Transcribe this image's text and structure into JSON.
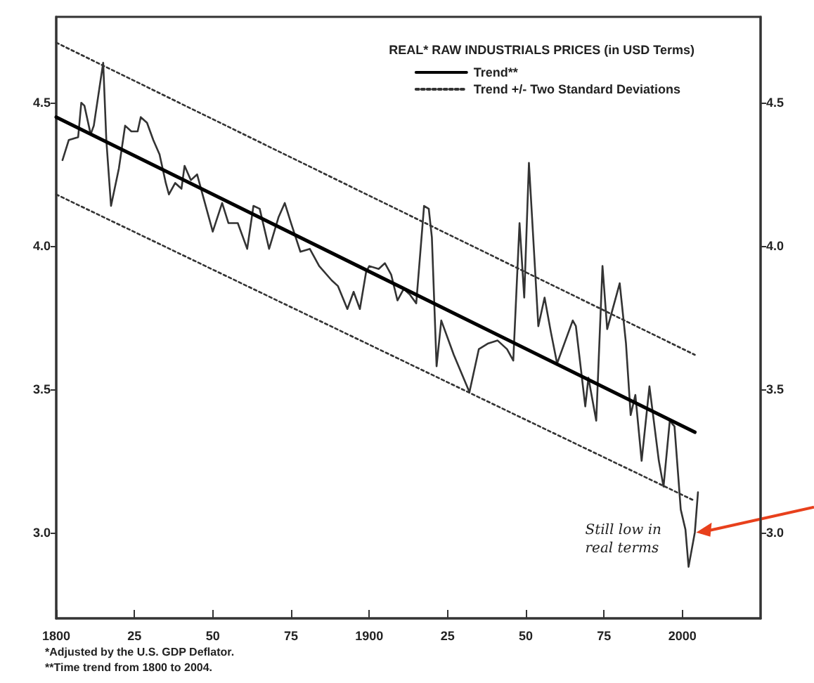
{
  "chart_data": {
    "type": "line",
    "legend_title": "REAL* RAW INDUSTRIALS PRICES (in USD Terms)",
    "xlim": [
      1800,
      2025
    ],
    "xticks": [
      1800,
      {
        "value": 1825,
        "label": "25"
      },
      {
        "value": 1850,
        "label": "50"
      },
      {
        "value": 1875,
        "label": "75"
      },
      1900,
      {
        "value": 1925,
        "label": "25"
      },
      {
        "value": 1950,
        "label": "50"
      },
      {
        "value": 1975,
        "label": "75"
      },
      2000
    ],
    "ylim": [
      2.7,
      4.8
    ],
    "yticks": [
      {
        "value": 3,
        "label": "3.0"
      },
      3.5,
      {
        "value": 4,
        "label": "4.0"
      },
      4.5
    ],
    "y2lim": [
      2.7,
      4.8
    ],
    "y2ticks": [
      {
        "value": 3,
        "label": "3.0"
      },
      3.5,
      {
        "value": 4,
        "label": "4.0"
      },
      4.5
    ],
    "grid": false,
    "legend": "top right",
    "marker": "none",
    "series": [
      {
        "color": "#333333",
        "line_style": "solid",
        "x": [
          1802,
          1804,
          1807,
          1808,
          1809,
          1811,
          1812,
          1815,
          1816,
          1817.5,
          1820,
          1822,
          1824,
          1826,
          1827,
          1829,
          1831,
          1833,
          1835,
          1836,
          1838,
          1840,
          1841,
          1843,
          1845,
          1847,
          1850,
          1853,
          1855,
          1858,
          1861,
          1863,
          1865,
          1868,
          1871,
          1873,
          1875,
          1878,
          1881,
          1884,
          1888,
          1890,
          1893,
          1895,
          1897,
          1899,
          1900,
          1903,
          1905,
          1907,
          1909,
          1911,
          1913,
          1915,
          1917.5,
          1919,
          1920,
          1921.5,
          1923,
          1927,
          1932,
          1935,
          1938,
          1941,
          1944,
          1946,
          1948,
          1949.5,
          1951,
          1954,
          1956,
          1958,
          1960,
          1965,
          1966,
          1969,
          1970,
          1972.5,
          1974.5,
          1976,
          1980,
          1982,
          1983.5,
          1985,
          1987,
          1989.5,
          1992.5,
          1994,
          1996,
          1997.5,
          1999.5,
          2001,
          2002,
          2004,
          2005
        ],
        "values": [
          4.3,
          4.37,
          4.38,
          4.5,
          4.49,
          4.39,
          4.42,
          4.64,
          4.37,
          4.14,
          4.27,
          4.42,
          4.4,
          4.4,
          4.45,
          4.43,
          4.37,
          4.32,
          4.22,
          4.18,
          4.22,
          4.2,
          4.28,
          4.23,
          4.25,
          4.17,
          4.05,
          4.15,
          4.08,
          4.08,
          3.99,
          4.14,
          4.13,
          3.99,
          4.1,
          4.15,
          4.08,
          3.98,
          3.99,
          3.93,
          3.88,
          3.86,
          3.78,
          3.84,
          3.78,
          3.91,
          3.93,
          3.92,
          3.94,
          3.9,
          3.81,
          3.85,
          3.83,
          3.8,
          4.14,
          4.13,
          4.03,
          3.58,
          3.74,
          3.62,
          3.49,
          3.64,
          3.66,
          3.67,
          3.64,
          3.6,
          4.08,
          3.82,
          4.29,
          3.72,
          3.82,
          3.7,
          3.59,
          3.74,
          3.72,
          3.44,
          3.54,
          3.39,
          3.93,
          3.71,
          3.87,
          3.66,
          3.41,
          3.48,
          3.25,
          3.51,
          3.25,
          3.16,
          3.39,
          3.37,
          3.08,
          3.01,
          2.88,
          3.0,
          3.14
        ]
      },
      {
        "name": "Trend**",
        "color": "#000000",
        "line_style": "solid",
        "x": [
          1800,
          2004
        ],
        "values": [
          4.45,
          3.35
        ]
      },
      {
        "name": "Trend +/- Two Standard Deviations",
        "color": "#333333",
        "line_style": "dotted",
        "x": [
          1800,
          2004
        ],
        "values": [
          4.71,
          3.62
        ]
      },
      {
        "color": "#333333",
        "line_style": "dotted",
        "x": [
          1800,
          2004
        ],
        "values": [
          4.18,
          3.11
        ]
      }
    ],
    "annotations": [
      {
        "text": "Still low in real terms",
        "x": 2004,
        "y": 3.0
      },
      "*Adjusted by the U.S. GDP Deflator.",
      "**Time trend from 1800 to 2004."
    ]
  }
}
